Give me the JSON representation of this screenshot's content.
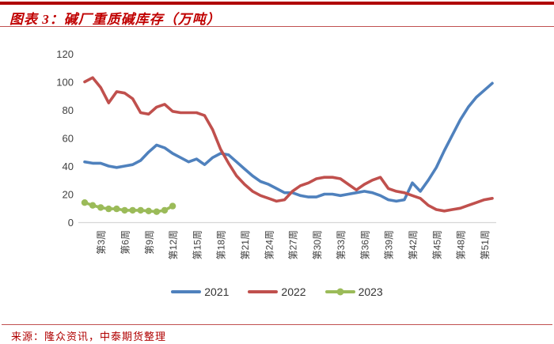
{
  "header": {
    "title": "图表 3：碱厂重质碱库存（万吨）"
  },
  "footer": {
    "source": "来源：隆众资讯，中泰期货整理"
  },
  "colors": {
    "accent_red": "#B00000",
    "title_red": "#C00000",
    "thin_rule_red": "#C05050",
    "axis_text": "#404040",
    "axis_line": "#D6D6D6",
    "legend_text": "#333333"
  },
  "chart_data": {
    "type": "line",
    "title": "碱厂重质碱库存（万吨）",
    "xlabel": "",
    "ylabel": "",
    "ylim": [
      0,
      120
    ],
    "yticks": [
      0,
      20,
      40,
      60,
      80,
      100,
      120
    ],
    "grid": false,
    "legend_position": "bottom",
    "x_unit": "周 (week of year)",
    "x_tick_weeks": [
      3,
      6,
      9,
      12,
      15,
      18,
      21,
      24,
      27,
      30,
      33,
      36,
      39,
      42,
      45,
      48,
      51
    ],
    "x_tick_labels": [
      "第3周",
      "第6周",
      "第9周",
      "第12周",
      "第15周",
      "第18周",
      "第21周",
      "第24周",
      "第27周",
      "第30周",
      "第33周",
      "第36周",
      "第39周",
      "第42周",
      "第45周",
      "第48周",
      "第51周"
    ],
    "series": [
      {
        "name": "2021",
        "color": "#4F81BD",
        "marker": "none",
        "start_week": 1,
        "values": [
          43,
          42,
          42,
          40,
          39,
          40,
          41,
          44,
          50,
          55,
          53,
          49,
          46,
          43,
          45,
          41,
          46,
          49,
          48,
          43,
          38,
          33,
          29,
          27,
          24,
          21,
          21,
          19,
          18,
          18,
          20,
          20,
          19,
          20,
          21,
          22,
          21,
          19,
          16,
          15,
          16,
          28,
          22,
          30,
          39,
          51,
          62,
          73,
          82,
          89,
          94,
          99
        ]
      },
      {
        "name": "2022",
        "color": "#C0504D",
        "marker": "none",
        "start_week": 1,
        "values": [
          100,
          103,
          96,
          85,
          93,
          92,
          88,
          78,
          77,
          82,
          84,
          79,
          78,
          78,
          78,
          76,
          66,
          52,
          42,
          33,
          27,
          22,
          19,
          17,
          15,
          16,
          22,
          26,
          28,
          31,
          32,
          32,
          31,
          27,
          23,
          27,
          30,
          32,
          24,
          22,
          21,
          19,
          17,
          12,
          9,
          8,
          9,
          10,
          12,
          14,
          16,
          17
        ]
      },
      {
        "name": "2023",
        "color": "#9BBB59",
        "marker": "circle",
        "start_week": 1,
        "values": [
          14,
          12,
          10.5,
          9.5,
          9.5,
          8.5,
          8.5,
          8.5,
          8,
          7.5,
          8.5,
          11.5
        ]
      }
    ]
  }
}
